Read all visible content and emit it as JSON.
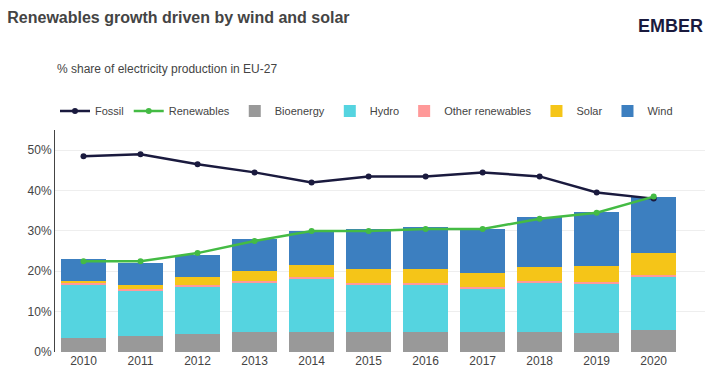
{
  "chart_data": {
    "type": "bar",
    "title": "Renewables growth driven by wind and solar",
    "subtitle": "% share of electricity production in EU-27",
    "annotations": [
      "EMBER"
    ],
    "stacked": true,
    "grid": true,
    "x": [
      2010,
      2011,
      2012,
      2013,
      2014,
      2015,
      2016,
      2017,
      2018,
      2019,
      2020
    ],
    "xlim": [
      2009.5,
      2020.9
    ],
    "xticks": [
      2010,
      2011,
      2012,
      2013,
      2014,
      2015,
      2016,
      2017,
      2018,
      2019,
      2020
    ],
    "ylim": [
      0,
      55
    ],
    "yticks": [
      {
        "value": 0,
        "label": "0%"
      },
      {
        "value": 10,
        "label": "10%"
      },
      {
        "value": 20,
        "label": "20%"
      },
      {
        "value": 30,
        "label": "30%"
      },
      {
        "value": 40,
        "label": "40%"
      },
      {
        "value": 50,
        "label": "50%"
      }
    ],
    "series": [
      {
        "name": "Fossil",
        "type": "line",
        "marker": "circle",
        "color": "#1a1a3e",
        "values": [
          48.5,
          49.0,
          46.5,
          44.5,
          42.0,
          43.5,
          43.5,
          44.5,
          43.5,
          39.5,
          38.0
        ]
      },
      {
        "name": "Renewables",
        "type": "line",
        "marker": "circle",
        "color": "#44bb44",
        "values": [
          22.5,
          22.5,
          24.5,
          27.5,
          30.0,
          30.0,
          30.5,
          30.5,
          33.0,
          34.5,
          38.5
        ]
      },
      {
        "name": "Bioenergy",
        "type": "bar",
        "color": "#999999",
        "values": [
          3.5,
          4.0,
          4.5,
          5.0,
          5.0,
          5.0,
          5.0,
          5.0,
          5.0,
          4.8,
          5.5
        ]
      },
      {
        "name": "Hydro",
        "type": "bar",
        "color": "#55d4e0",
        "values": [
          13.0,
          11.0,
          11.5,
          12.0,
          13.0,
          11.5,
          11.5,
          10.5,
          12.0,
          12.0,
          13.0
        ]
      },
      {
        "name": "Other renewables",
        "type": "bar",
        "color": "#ff9999",
        "values": [
          0.5,
          0.5,
          0.5,
          0.5,
          0.5,
          0.5,
          0.5,
          0.5,
          0.5,
          0.5,
          0.5
        ]
      },
      {
        "name": "Solar",
        "type": "bar",
        "color": "#f5c518",
        "values": [
          0.5,
          1.0,
          2.0,
          2.5,
          3.0,
          3.5,
          3.5,
          3.5,
          3.5,
          4.0,
          5.5
        ]
      },
      {
        "name": "Wind",
        "type": "bar",
        "color": "#3c7fc0",
        "values": [
          5.5,
          5.5,
          5.5,
          8.0,
          8.5,
          10.0,
          10.5,
          11.0,
          12.5,
          13.5,
          14.0
        ]
      }
    ]
  }
}
